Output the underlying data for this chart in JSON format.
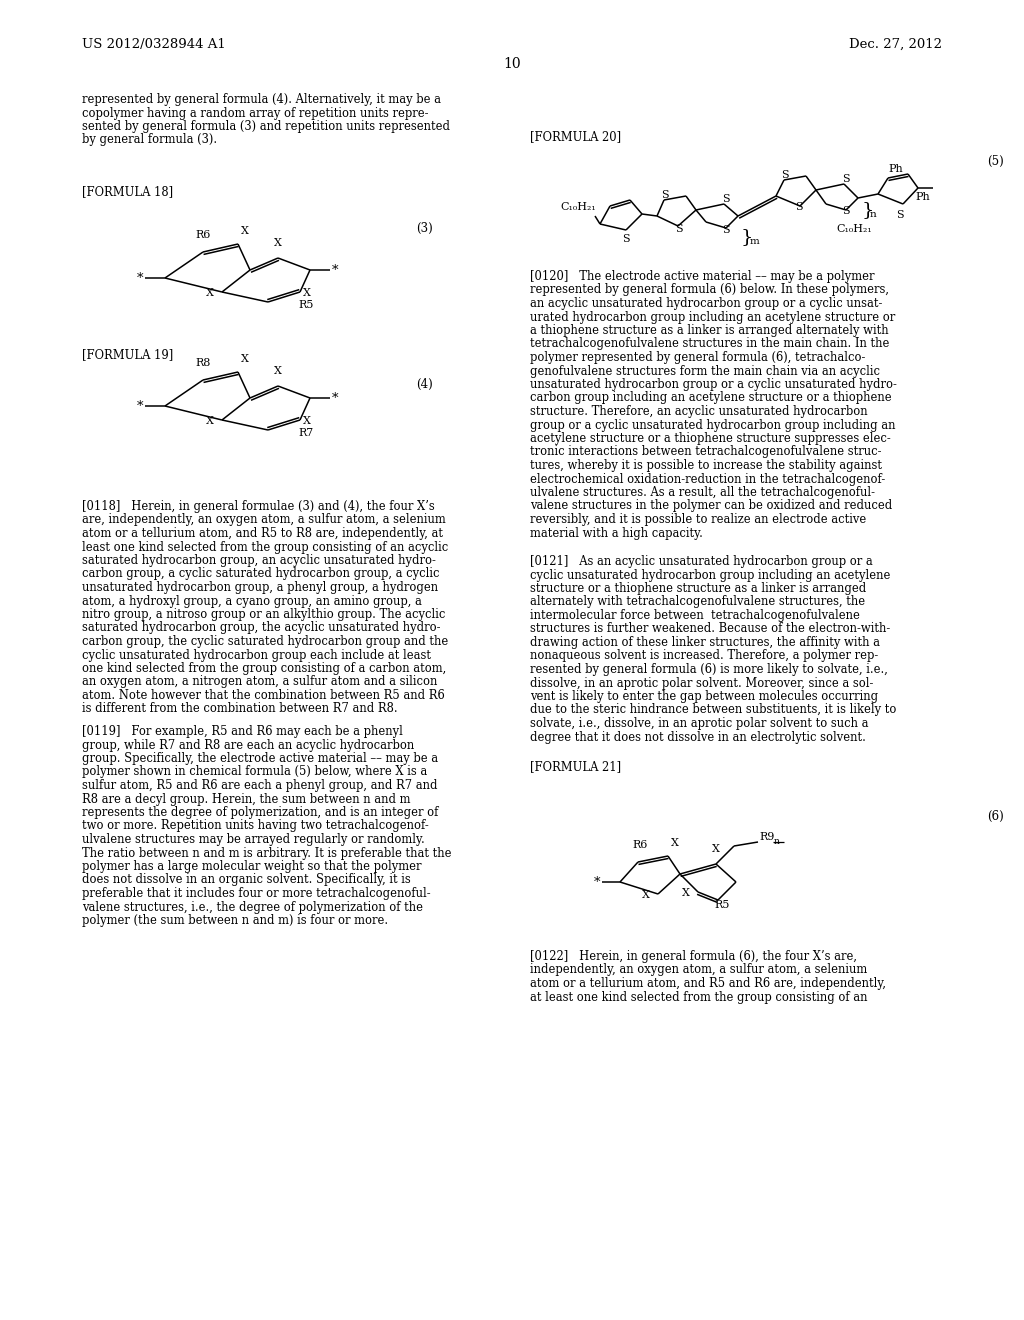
{
  "bg_color": "#ffffff",
  "header_left": "US 2012/0328944 A1",
  "header_right": "Dec. 27, 2012",
  "page_number": "10",
  "fig_width": 10.24,
  "fig_height": 13.2,
  "dpi": 100
}
